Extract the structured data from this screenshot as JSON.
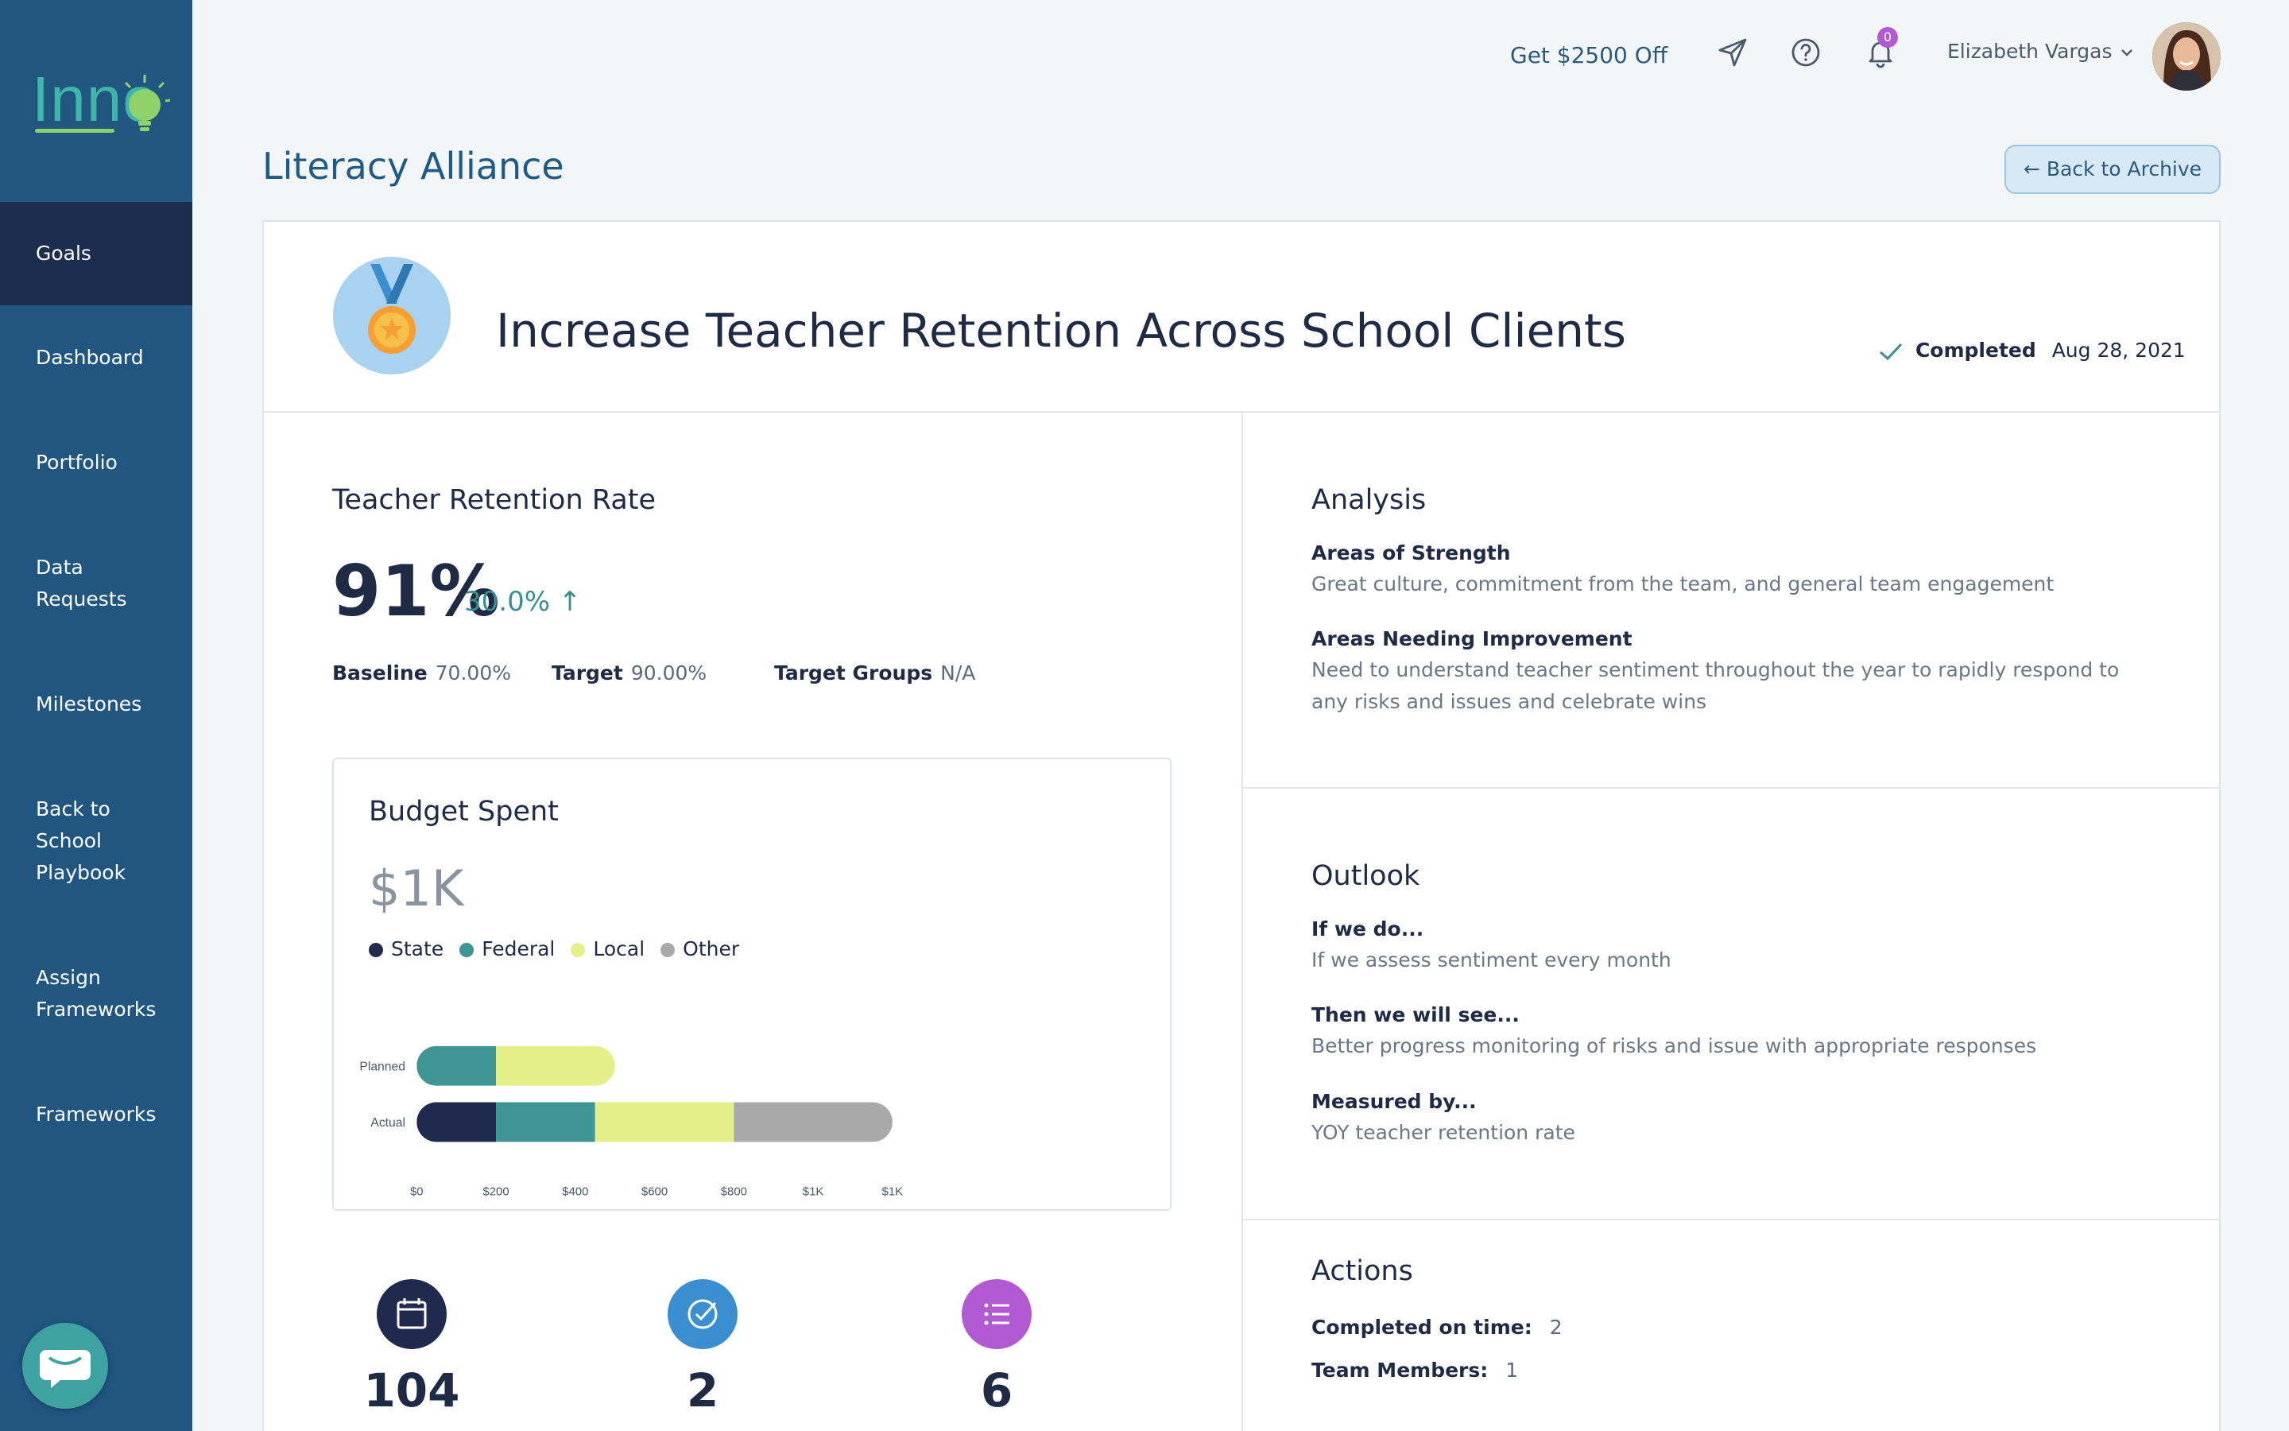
{
  "brand": {
    "logo_text": "Inno"
  },
  "sidebar": {
    "items": [
      {
        "label": "Goals"
      },
      {
        "label": "Dashboard"
      },
      {
        "label": "Portfolio"
      },
      {
        "label": "Data Requests"
      },
      {
        "label": "Milestones"
      },
      {
        "label": "Back to School Playbook"
      },
      {
        "label": "Assign Frameworks"
      },
      {
        "label": "Frameworks"
      }
    ]
  },
  "topbar": {
    "promo": "Get $2500 Off",
    "notification_count": "0",
    "user_name": "Elizabeth Vargas",
    "icons": [
      "send-icon",
      "help-icon",
      "bell-icon",
      "chevron-down-icon"
    ]
  },
  "page": {
    "title": "Literacy Alliance",
    "back_button": "← Back to Archive"
  },
  "goal": {
    "title": "Increase Teacher Retention Across School Clients",
    "status": "Completed",
    "date": "Aug 28, 2021"
  },
  "metric": {
    "title": "Teacher Retention Rate",
    "value": "91%",
    "change": "30.0% ↑",
    "baseline_label": "Baseline",
    "baseline_value": "70.00%",
    "target_label": "Target",
    "target_value": "90.00%",
    "groups_label": "Target Groups",
    "groups_value": "N/A"
  },
  "budget": {
    "title": "Budget Spent",
    "total": "$1K"
  },
  "chart_data": {
    "type": "bar",
    "orientation": "horizontal",
    "stacked": true,
    "categories": [
      "Planned",
      "Actual"
    ],
    "series": [
      {
        "name": "State",
        "color": "#1f2a4d",
        "values": [
          0,
          200
        ]
      },
      {
        "name": "Federal",
        "color": "#3f9593",
        "values": [
          200,
          250
        ]
      },
      {
        "name": "Local",
        "color": "#e4ef8a",
        "values": [
          300,
          350
        ]
      },
      {
        "name": "Other",
        "color": "#a9a9a9",
        "values": [
          0,
          400
        ]
      }
    ],
    "xticks": [
      0,
      200,
      400,
      600,
      800,
      1000,
      1200
    ],
    "xtick_labels": [
      "$0",
      "$200",
      "$400",
      "$600",
      "$800",
      "$1K",
      "$1K"
    ],
    "xlim": [
      0,
      1200
    ],
    "legend_position": "top-left"
  },
  "stats": [
    {
      "value": "104",
      "icon": "calendar-icon",
      "color": "#1f2a4d"
    },
    {
      "value": "2",
      "icon": "check-circle-icon",
      "color": "#3b8fd1"
    },
    {
      "value": "6",
      "icon": "list-icon",
      "color": "#b25ad1"
    }
  ],
  "analysis": {
    "title": "Analysis",
    "strength_label": "Areas of Strength",
    "strength_text": "Great culture, commitment from the team, and general team engagement",
    "improve_label": "Areas Needing Improvement",
    "improve_text": "Need to understand teacher sentiment throughout the year to rapidly respond to any risks and issues and celebrate wins"
  },
  "outlook": {
    "title": "Outlook",
    "if_label": "If we do...",
    "if_text": "If we assess sentiment every month",
    "then_label": "Then we will see...",
    "then_text": "Better progress monitoring of risks and issue with appropriate responses",
    "measured_label": "Measured by...",
    "measured_text": "YOY teacher retention rate"
  },
  "actions": {
    "title": "Actions",
    "completed_label": "Completed on time:",
    "completed_value": "2",
    "team_label": "Team Members:",
    "team_value": "1"
  }
}
